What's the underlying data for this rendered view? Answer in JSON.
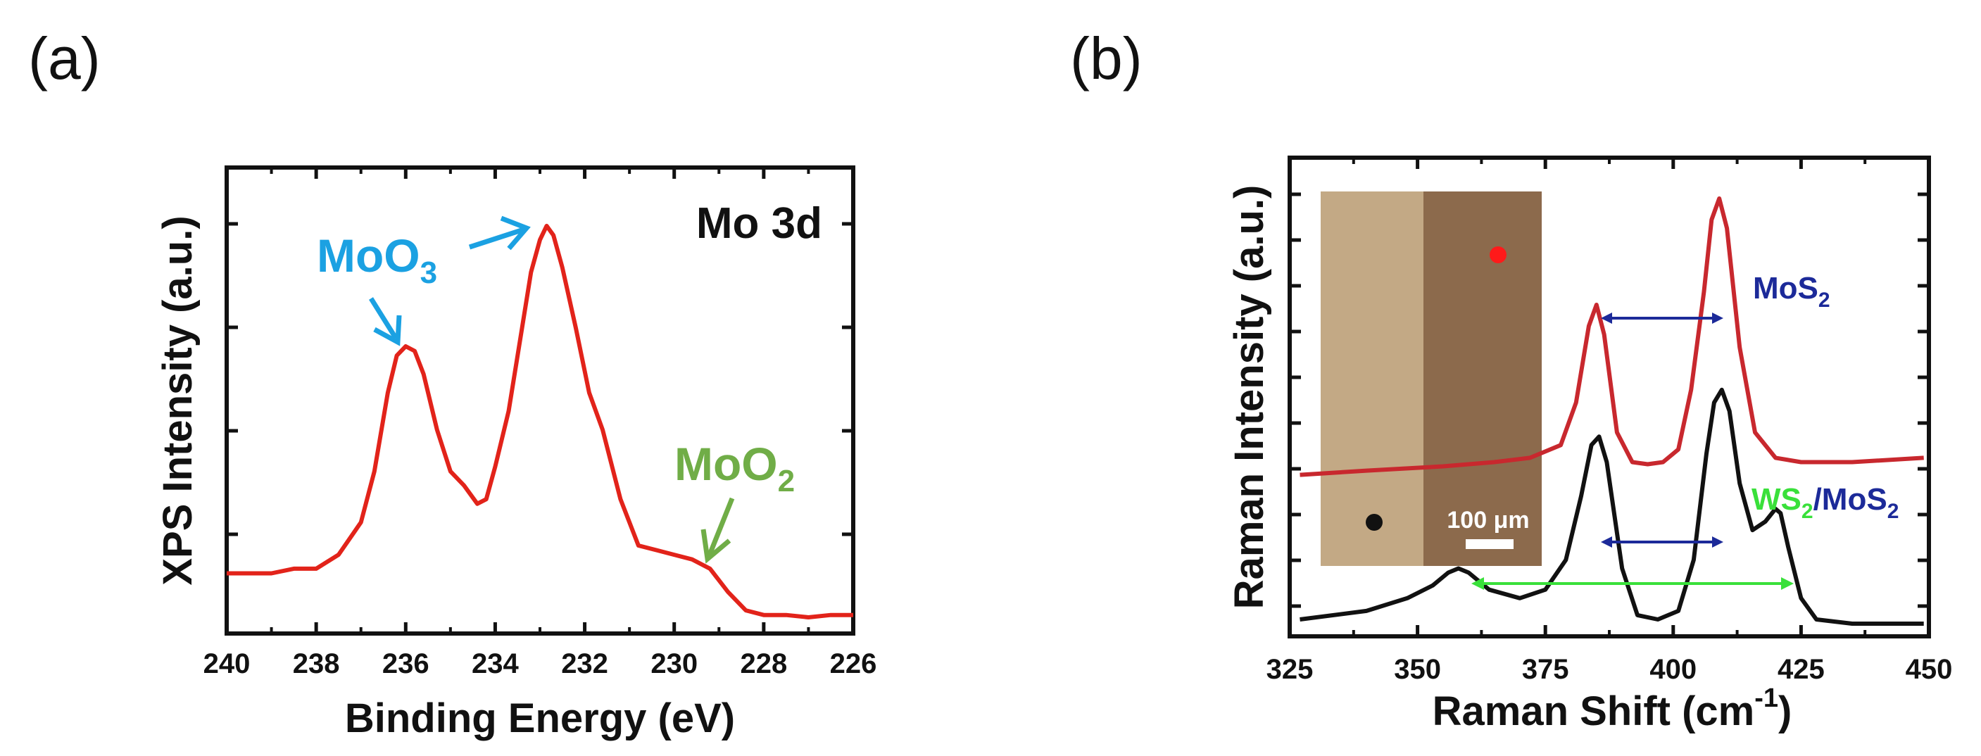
{
  "panel_a_label": "(a)",
  "panel_b_label": "(b)",
  "colors": {
    "red": "#e2231a",
    "dark_red": "#c8282e",
    "blue": "#1ba1e2",
    "green": "#70ad47",
    "navy": "#1c2a99",
    "bright_green": "#39e03a",
    "black": "#111111",
    "inset_light": "#c3a985",
    "inset_dark": "#8c6a4c"
  },
  "chart_data": [
    {
      "type": "line",
      "title": "Mo 3d",
      "xlabel": "Binding Energy (eV)",
      "ylabel": "XPS Intensity (a.u.)",
      "xlim": [
        240,
        226
      ],
      "ylim": [
        0,
        1.0
      ],
      "xticks": [
        "240",
        "238",
        "236",
        "234",
        "232",
        "230",
        "228",
        "226"
      ],
      "series": [
        {
          "name": "Mo 3d",
          "x": [
            240,
            239,
            238.5,
            238,
            237.5,
            237,
            236.7,
            236.4,
            236.2,
            236.0,
            235.8,
            235.6,
            235.3,
            235.0,
            234.7,
            234.4,
            234.2,
            234.0,
            233.7,
            233.4,
            233.2,
            233.0,
            232.85,
            232.7,
            232.5,
            232.2,
            231.9,
            231.6,
            231.2,
            230.8,
            230.4,
            230.0,
            229.6,
            229.2,
            228.8,
            228.4,
            228.0,
            227.5,
            227.0,
            226.5,
            226.0
          ],
          "y": [
            0.13,
            0.13,
            0.14,
            0.14,
            0.17,
            0.24,
            0.35,
            0.52,
            0.6,
            0.62,
            0.61,
            0.56,
            0.44,
            0.35,
            0.32,
            0.28,
            0.29,
            0.36,
            0.48,
            0.66,
            0.78,
            0.85,
            0.88,
            0.86,
            0.79,
            0.66,
            0.52,
            0.44,
            0.29,
            0.19,
            0.18,
            0.17,
            0.16,
            0.14,
            0.09,
            0.05,
            0.04,
            0.04,
            0.035,
            0.04,
            0.04
          ]
        }
      ],
      "annotations": [
        {
          "text": "MoO",
          "subscript": "3",
          "color": "blue",
          "points_to": "236.0 eV and 232.85 eV peaks"
        },
        {
          "text": "MoO",
          "subscript": "2",
          "color": "green",
          "points_to": "229.5 eV shoulder"
        }
      ]
    },
    {
      "type": "line",
      "title": "",
      "xlabel": "Raman Shift (cm",
      "xlabel_sup": "-1",
      "xlabel_close": ")",
      "ylabel": "Raman Intensity (a.u.)",
      "xlim": [
        325,
        450
      ],
      "ylim": [
        0,
        1.0
      ],
      "xticks": [
        "325",
        "350",
        "375",
        "400",
        "425",
        "450"
      ],
      "inset": {
        "scale_bar_label": "100 μm"
      },
      "series": [
        {
          "name": "MoS2",
          "color": "dark_red",
          "x": [
            327,
            340,
            355,
            365,
            372,
            378,
            381,
            383.5,
            385,
            386.5,
            389,
            392,
            395,
            398,
            401,
            403.5,
            406,
            407.5,
            409,
            410.5,
            413,
            416,
            420,
            425,
            435,
            449
          ],
          "y": [
            0.35,
            0.36,
            0.37,
            0.38,
            0.39,
            0.42,
            0.52,
            0.7,
            0.75,
            0.68,
            0.45,
            0.38,
            0.375,
            0.38,
            0.41,
            0.55,
            0.78,
            0.95,
            1.0,
            0.93,
            0.65,
            0.45,
            0.39,
            0.38,
            0.38,
            0.39
          ]
        },
        {
          "name": "WS2/MoS2",
          "color": "black",
          "x": [
            327,
            340,
            348,
            353,
            356,
            358,
            360,
            364,
            370,
            375,
            379,
            382,
            384,
            385.5,
            387,
            390,
            393,
            397,
            401,
            404,
            406.5,
            408,
            409.5,
            411,
            413,
            415.5,
            418,
            420,
            421,
            422.5,
            425,
            428,
            435,
            449
          ],
          "y": [
            0.01,
            0.03,
            0.06,
            0.09,
            0.12,
            0.13,
            0.12,
            0.08,
            0.06,
            0.08,
            0.15,
            0.3,
            0.42,
            0.44,
            0.38,
            0.13,
            0.02,
            0.01,
            0.03,
            0.15,
            0.4,
            0.52,
            0.55,
            0.5,
            0.33,
            0.22,
            0.24,
            0.27,
            0.26,
            0.18,
            0.06,
            0.01,
            0.0,
            0.0
          ]
        }
      ],
      "annotations": [
        {
          "text": "MoS",
          "subscript": "2",
          "color": "navy"
        },
        {
          "text": "WS",
          "subscript": "2",
          "text2": "/MoS",
          "subscript2": "2"
        }
      ]
    }
  ]
}
